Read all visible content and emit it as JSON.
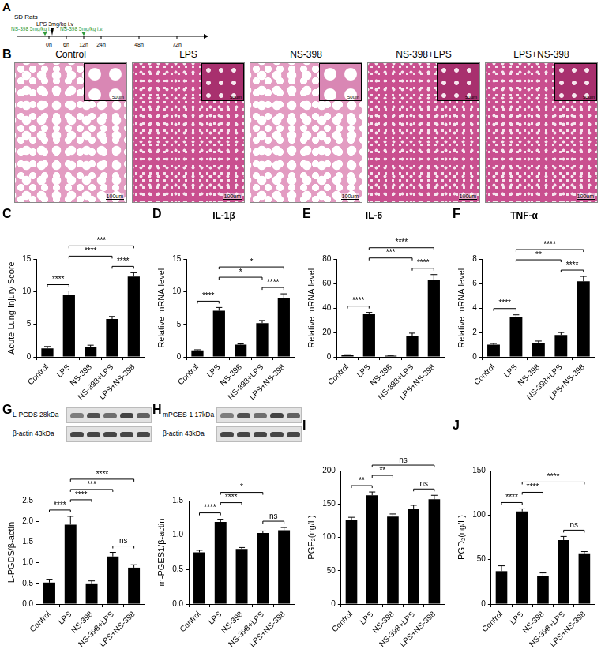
{
  "panel_a": {
    "panel": "A",
    "title": "SD Rats",
    "lps": "LPS 3mg/kg i.v",
    "ns398": [
      "NS-398 5mg/kg i.v.",
      "NS-398 5mg/kg i.v."
    ],
    "times": [
      "0h",
      "6h",
      "12h",
      "24h",
      "48h",
      "72h"
    ]
  },
  "panel_b": {
    "panel": "B",
    "groups": [
      "Control",
      "LPS",
      "NS-398",
      "NS-398+LPS",
      "LPS+NS-398"
    ],
    "scale_main": "100um",
    "scale_inset": "50um"
  },
  "chart_data": [
    {
      "panel": "C",
      "type": "bar",
      "y_label": "Acute Lung Injury Score",
      "categories": [
        "Control",
        "LPS",
        "NS-398",
        "NS-398+LPS",
        "LPS+NS-398"
      ],
      "values": [
        1.3,
        9.5,
        1.5,
        5.8,
        12.3
      ],
      "errors": [
        0.3,
        0.6,
        0.3,
        0.4,
        0.6
      ],
      "color": "#000000",
      "ylim": [
        0,
        15
      ],
      "yticks": [
        0,
        5,
        10,
        15
      ],
      "grid": false,
      "annotations": [
        {
          "from": "Control",
          "to": "LPS",
          "label": "****"
        },
        {
          "from": "NS-398+LPS",
          "to": "LPS+NS-398",
          "label": "****"
        },
        {
          "from": "LPS",
          "to": "NS-398+LPS",
          "label": "****"
        },
        {
          "from": "LPS",
          "to": "LPS+NS-398",
          "label": "***"
        }
      ]
    },
    {
      "panel": "D",
      "type": "bar",
      "title": "IL-1β",
      "y_label": "Relative mRNA level",
      "categories": [
        "Control",
        "LPS",
        "NS-398",
        "NS-398+LPS",
        "LPS+NS-398"
      ],
      "values": [
        1.0,
        7.1,
        1.9,
        5.2,
        9.1
      ],
      "errors": [
        0.1,
        0.5,
        0.1,
        0.4,
        0.6
      ],
      "color": "#000000",
      "ylim": [
        0,
        15
      ],
      "yticks": [
        0,
        5,
        10,
        15
      ],
      "grid": false,
      "annotations": [
        {
          "from": "Control",
          "to": "LPS",
          "label": "****"
        },
        {
          "from": "NS-398+LPS",
          "to": "LPS+NS-398",
          "label": "****"
        },
        {
          "from": "LPS",
          "to": "NS-398+LPS",
          "label": "*"
        },
        {
          "from": "LPS",
          "to": "LPS+NS-398",
          "label": "*"
        }
      ]
    },
    {
      "panel": "E",
      "type": "bar",
      "title": "IL-6",
      "y_label": "Relative mRNA level",
      "categories": [
        "Control",
        "LPS",
        "NS-398",
        "NS-398+LPS",
        "LPS+NS-398"
      ],
      "values": [
        1.5,
        35,
        1.0,
        17.5,
        63.5
      ],
      "errors": [
        0.3,
        1.5,
        0.2,
        2,
        4
      ],
      "color": "#000000",
      "ylim": [
        0,
        80
      ],
      "yticks": [
        0,
        20,
        40,
        60,
        80
      ],
      "grid": false,
      "annotations": [
        {
          "from": "Control",
          "to": "LPS",
          "label": "****"
        },
        {
          "from": "NS-398+LPS",
          "to": "LPS+NS-398",
          "label": "****"
        },
        {
          "from": "LPS",
          "to": "NS-398+LPS",
          "label": "***"
        },
        {
          "from": "LPS",
          "to": "LPS+NS-398",
          "label": "****"
        }
      ]
    },
    {
      "panel": "F",
      "type": "bar",
      "title": "TNF-α",
      "y_label": "Relative mRNA level",
      "categories": [
        "Control",
        "LPS",
        "NS-398",
        "NS-398+LPS",
        "LPS+NS-398"
      ],
      "values": [
        1.0,
        3.25,
        1.15,
        1.8,
        6.2
      ],
      "errors": [
        0.1,
        0.2,
        0.15,
        0.2,
        0.4
      ],
      "color": "#000000",
      "ylim": [
        0,
        8
      ],
      "yticks": [
        0,
        2,
        4,
        6,
        8
      ],
      "grid": false,
      "annotations": [
        {
          "from": "Control",
          "to": "LPS",
          "label": "****"
        },
        {
          "from": "NS-398+LPS",
          "to": "LPS+NS-398",
          "label": "****"
        },
        {
          "from": "LPS",
          "to": "NS-398+LPS",
          "label": "**"
        },
        {
          "from": "LPS",
          "to": "LPS+NS-398",
          "label": "****"
        }
      ]
    },
    {
      "panel": "G",
      "type": "bar",
      "y_label": "L-PGDS/β-actin",
      "blot_labels": [
        "L-PGDS 28kDa",
        "β-actin 43kDa"
      ],
      "categories": [
        "Control",
        "LPS",
        "NS-398",
        "NS-398+LPS",
        "LPS+NS-398"
      ],
      "values": [
        0.52,
        1.92,
        0.5,
        1.15,
        0.88
      ],
      "errors": [
        0.08,
        0.2,
        0.06,
        0.1,
        0.07
      ],
      "color": "#000000",
      "ylim": [
        0,
        2.5
      ],
      "yticks": [
        {
          "value": 0,
          "label": "0.0"
        },
        0.5,
        {
          "value": 1,
          "label": "1.0"
        },
        1.5,
        {
          "value": 2,
          "label": "2.0"
        },
        2.5
      ],
      "grid": false,
      "annotations": [
        {
          "from": "Control",
          "to": "LPS",
          "label": "****"
        },
        {
          "from": "LPS",
          "to": "NS-398",
          "label": "****"
        },
        {
          "from": "NS-398+LPS",
          "to": "LPS+NS-398",
          "label": "ns"
        },
        {
          "from": "LPS",
          "to": "NS-398+LPS",
          "label": "***"
        },
        {
          "from": "LPS",
          "to": "LPS+NS-398",
          "label": "****"
        }
      ]
    },
    {
      "panel": "H",
      "type": "bar",
      "y_label": "m-PGES1/β-actin",
      "blot_labels": [
        "mPGES-1 17kDa",
        "β-actin 43kDa"
      ],
      "categories": [
        "Control",
        "LPS",
        "NS-398",
        "NS-398+LPS",
        "LPS+NS-398"
      ],
      "values": [
        0.75,
        1.19,
        0.8,
        1.03,
        1.07
      ],
      "errors": [
        0.03,
        0.04,
        0.02,
        0.03,
        0.04
      ],
      "color": "#000000",
      "ylim": [
        0,
        1.5
      ],
      "yticks": [
        {
          "value": 0,
          "label": "0.0"
        },
        0.5,
        {
          "value": 1,
          "label": "1.0"
        },
        1.5
      ],
      "grid": false,
      "annotations": [
        {
          "from": "Control",
          "to": "LPS",
          "label": "****"
        },
        {
          "from": "LPS",
          "to": "NS-398",
          "label": "****"
        },
        {
          "from": "NS-398+LPS",
          "to": "LPS+NS-398",
          "label": "ns"
        },
        {
          "from": "LPS",
          "to": "NS-398+LPS",
          "label": "*"
        }
      ]
    },
    {
      "panel": "I",
      "type": "bar",
      "y_label": "PGE₂(ng/L)",
      "categories": [
        "Control",
        "LPS",
        "NS-398",
        "NS-398+LPS",
        "LPS+NS-398"
      ],
      "values": [
        126,
        163,
        131,
        142,
        157
      ],
      "errors": [
        4,
        5,
        4,
        6,
        6
      ],
      "color": "#000000",
      "ylim": [
        0,
        200
      ],
      "yticks": [
        0,
        50,
        100,
        150,
        200
      ],
      "grid": false,
      "annotations": [
        {
          "from": "Control",
          "to": "LPS",
          "label": "**"
        },
        {
          "from": "LPS",
          "to": "NS-398",
          "label": "**"
        },
        {
          "from": "NS-398+LPS",
          "to": "LPS+NS-398",
          "label": "ns"
        },
        {
          "from": "LPS",
          "to": "LPS+NS-398",
          "label": "ns"
        }
      ]
    },
    {
      "panel": "J",
      "type": "bar",
      "y_label": "PGD₂(ng/L)",
      "categories": [
        "Control",
        "LPS",
        "NS-398",
        "NS-398+LPS",
        "LPS+NS-398"
      ],
      "values": [
        37,
        104,
        32,
        72,
        57
      ],
      "errors": [
        6,
        3,
        3,
        4,
        2
      ],
      "color": "#000000",
      "ylim": [
        0,
        150
      ],
      "yticks": [
        0,
        50,
        100,
        150
      ],
      "grid": false,
      "annotations": [
        {
          "from": "Control",
          "to": "LPS",
          "label": "****"
        },
        {
          "from": "LPS",
          "to": "NS-398",
          "label": "****"
        },
        {
          "from": "NS-398+LPS",
          "to": "LPS+NS-398",
          "label": "ns"
        },
        {
          "from": "LPS",
          "to": "LPS+NS-398",
          "label": "****"
        }
      ]
    }
  ]
}
